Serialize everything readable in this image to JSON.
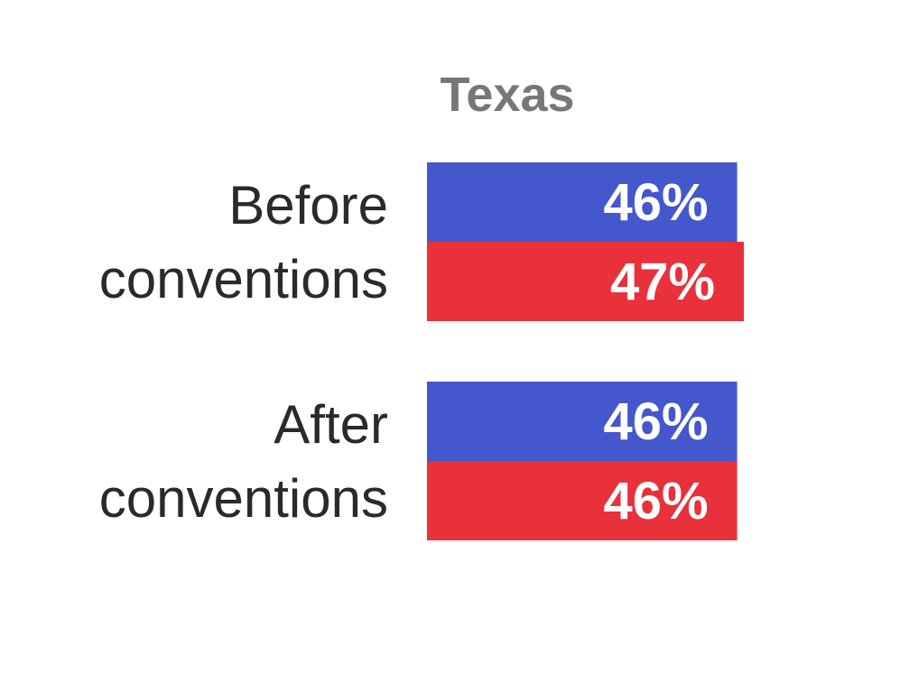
{
  "chart_data": {
    "type": "bar",
    "orientation": "horizontal",
    "title": "Texas",
    "categories": [
      [
        "Before",
        "conventions"
      ],
      [
        "After",
        "conventions"
      ]
    ],
    "series": [
      {
        "color": "#4457cc",
        "values": [
          46,
          46
        ]
      },
      {
        "color": "#e8313b",
        "values": [
          47,
          46
        ]
      }
    ],
    "value_labels": [
      [
        "46%",
        "47%"
      ],
      [
        "46%",
        "46%"
      ]
    ],
    "xlim": [
      0,
      100
    ],
    "grid": false,
    "legend": "none"
  }
}
